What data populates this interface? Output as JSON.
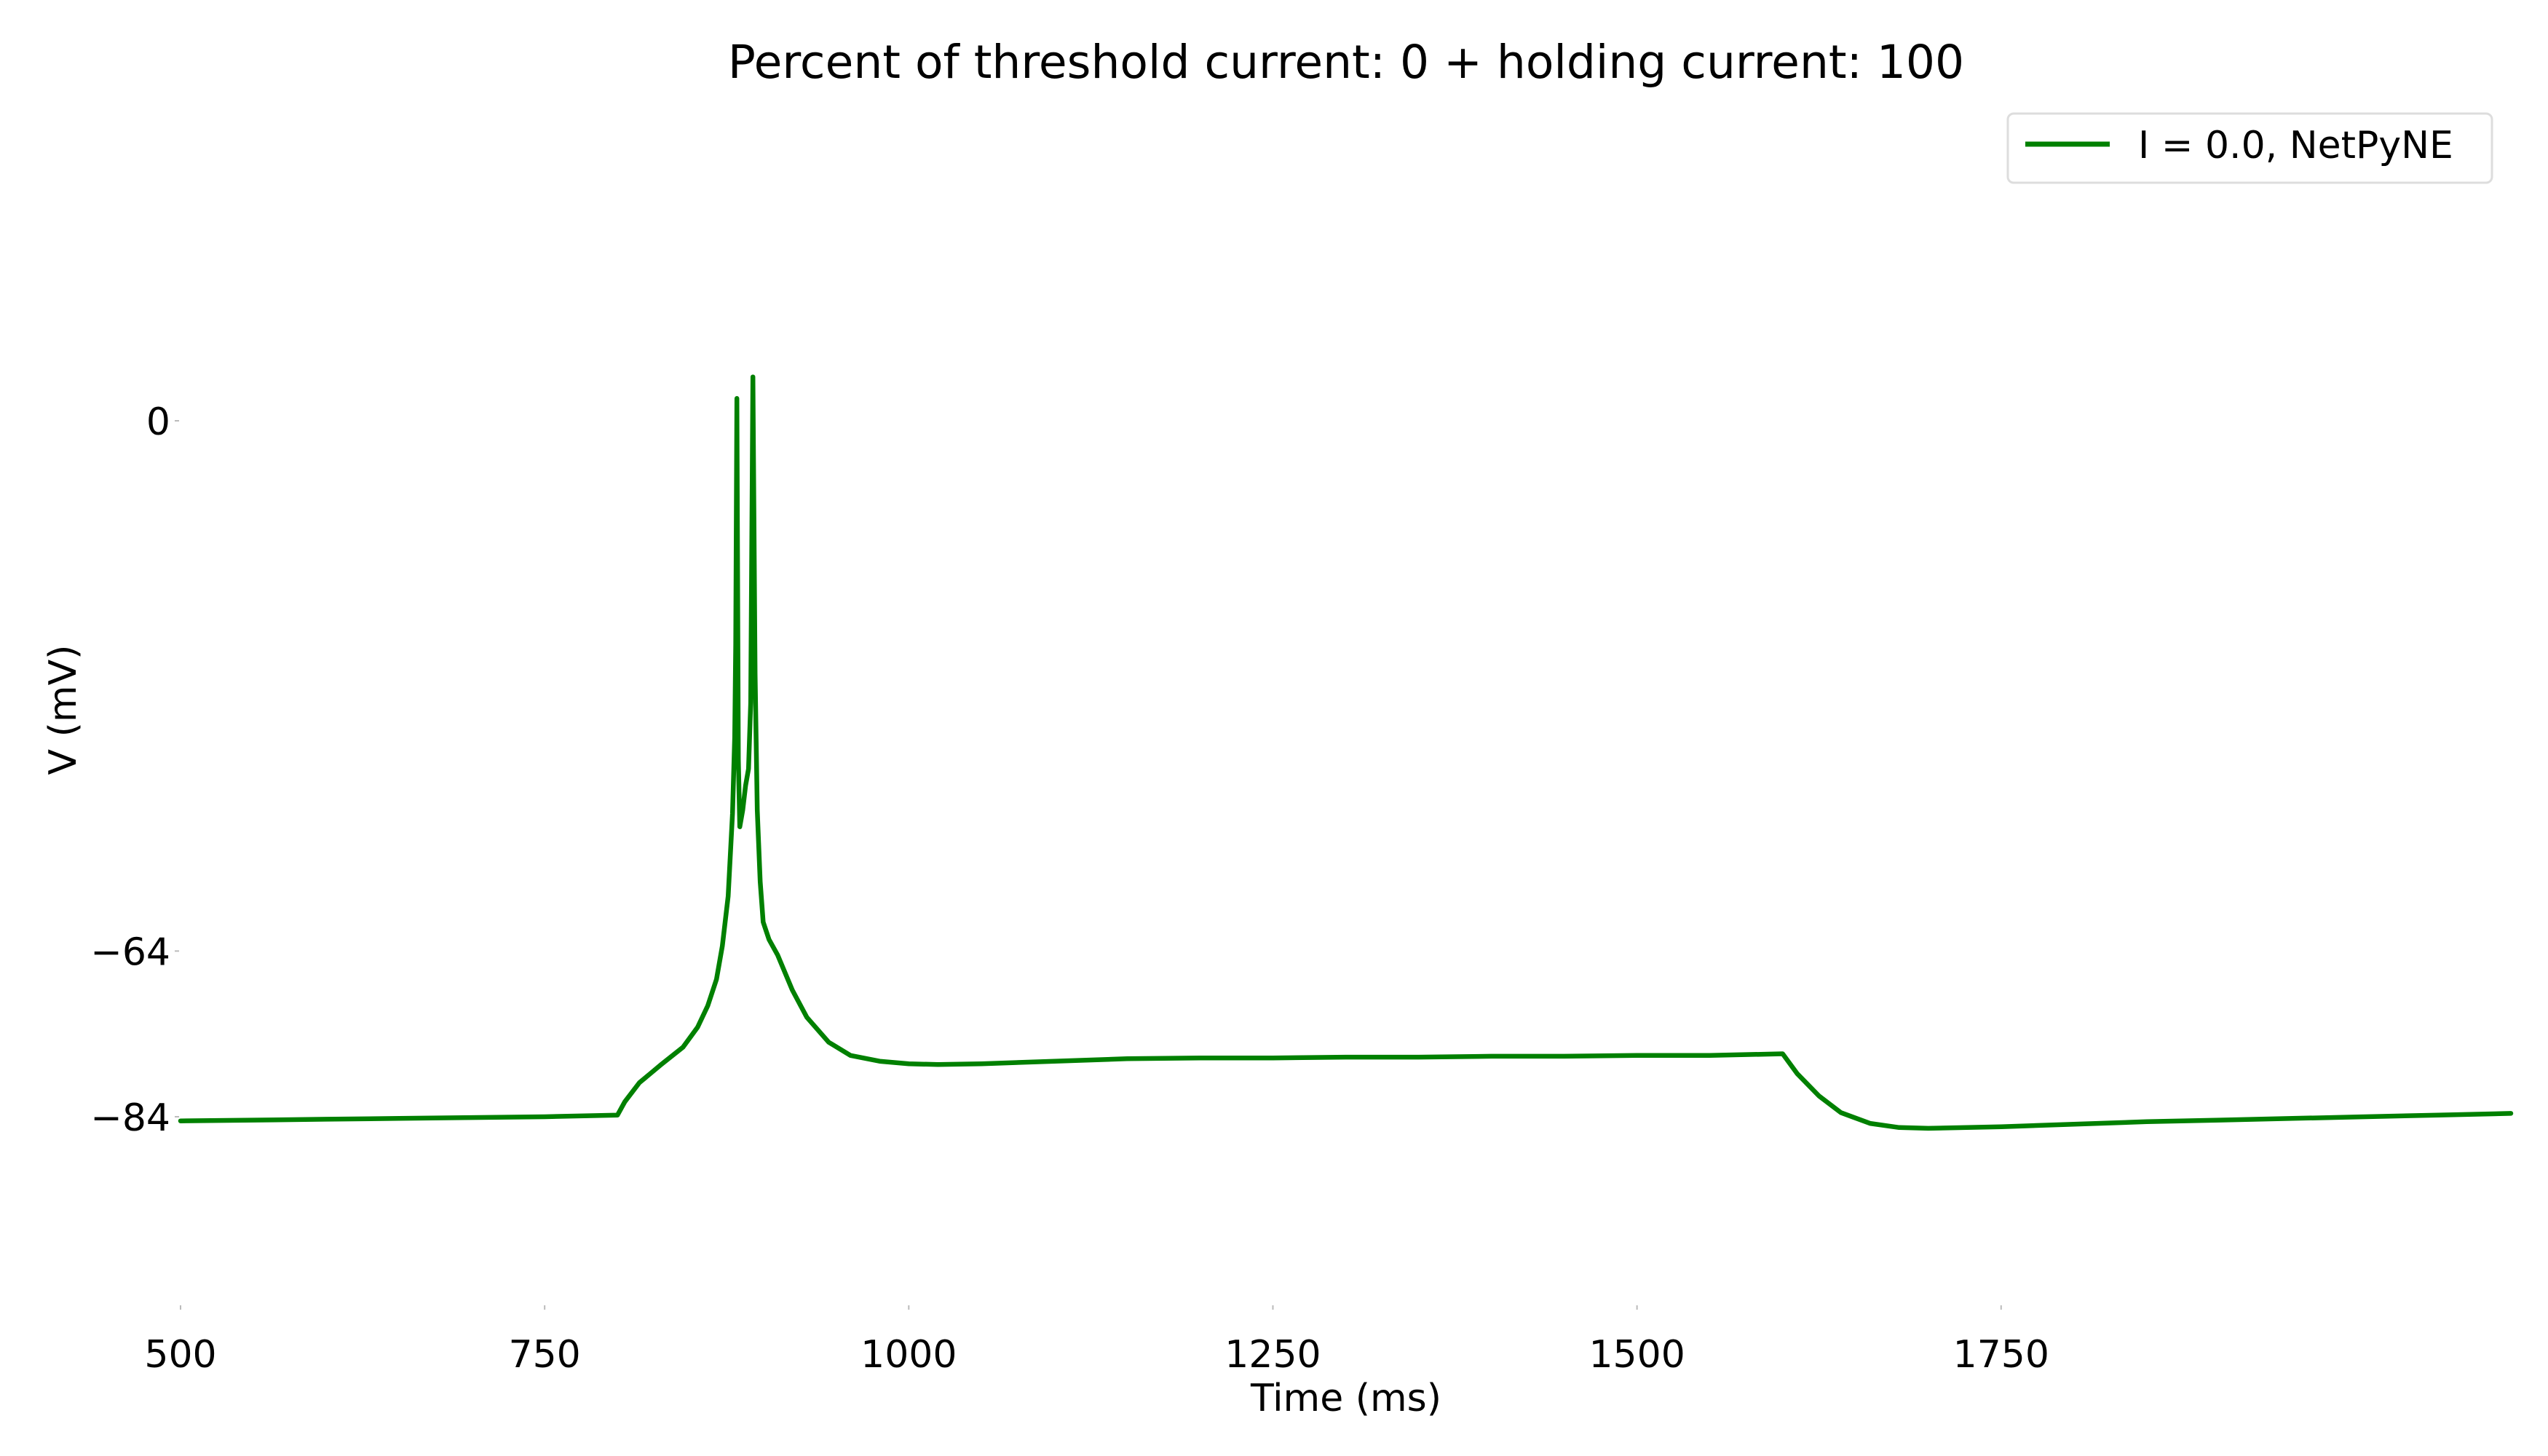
{
  "chart_data": {
    "type": "line",
    "title": "Percent of threshold current: 0 + holding current: 100",
    "xlabel": "Time (ms)",
    "ylabel": "V (mV)",
    "xlim": [
      500,
      2100
    ],
    "ylim": [
      -110,
      15
    ],
    "x_ticks": [
      500,
      750,
      1000,
      1250,
      1500,
      1750
    ],
    "x_tick_labels": [
      "500",
      "750",
      "1000",
      "1250",
      "1500",
      "1750"
    ],
    "y_ticks": [
      0,
      -64,
      -84
    ],
    "y_tick_labels": [
      "0",
      "−64",
      "−84"
    ],
    "grid": false,
    "legend_position": "top-right",
    "series": [
      {
        "name": "I = 0.0, NetPyNE",
        "color": "#008000",
        "points": [
          [
            500,
            -84.5
          ],
          [
            550,
            -84.4
          ],
          [
            600,
            -84.3
          ],
          [
            650,
            -84.2
          ],
          [
            700,
            -84.1
          ],
          [
            750,
            -84.0
          ],
          [
            800,
            -83.8
          ],
          [
            805,
            -82.2
          ],
          [
            815,
            -79.9
          ],
          [
            830,
            -77.7
          ],
          [
            845,
            -75.6
          ],
          [
            855,
            -73.2
          ],
          [
            862,
            -70.6
          ],
          [
            868,
            -67.4
          ],
          [
            872,
            -63.4
          ],
          [
            876,
            -57.4
          ],
          [
            879,
            -47.4
          ],
          [
            880.5,
            -38.2
          ],
          [
            881.2,
            -27.1
          ],
          [
            882,
            2.7
          ],
          [
            883,
            -40.9
          ],
          [
            884,
            -49.0
          ],
          [
            886,
            -47.0
          ],
          [
            888,
            -44.0
          ],
          [
            890,
            -42.0
          ],
          [
            891.5,
            -34.0
          ],
          [
            893,
            5.3
          ],
          [
            894.5,
            -30.5
          ],
          [
            896,
            -47.0
          ],
          [
            898,
            -55.6
          ],
          [
            900,
            -60.5
          ],
          [
            904,
            -62.6
          ],
          [
            910,
            -64.5
          ],
          [
            920,
            -68.7
          ],
          [
            930,
            -72.0
          ],
          [
            945,
            -75.0
          ],
          [
            960,
            -76.6
          ],
          [
            980,
            -77.3
          ],
          [
            1000,
            -77.6
          ],
          [
            1020,
            -77.7
          ],
          [
            1050,
            -77.6
          ],
          [
            1100,
            -77.3
          ],
          [
            1150,
            -77.0
          ],
          [
            1200,
            -76.9
          ],
          [
            1250,
            -76.9
          ],
          [
            1300,
            -76.8
          ],
          [
            1350,
            -76.8
          ],
          [
            1400,
            -76.7
          ],
          [
            1450,
            -76.7
          ],
          [
            1500,
            -76.6
          ],
          [
            1550,
            -76.6
          ],
          [
            1600,
            -76.4
          ],
          [
            1610,
            -78.8
          ],
          [
            1625,
            -81.5
          ],
          [
            1640,
            -83.5
          ],
          [
            1660,
            -84.8
          ],
          [
            1680,
            -85.3
          ],
          [
            1700,
            -85.4
          ],
          [
            1750,
            -85.2
          ],
          [
            1800,
            -84.9
          ],
          [
            1850,
            -84.6
          ],
          [
            1900,
            -84.4
          ],
          [
            1950,
            -84.2
          ],
          [
            2000,
            -84.0
          ],
          [
            2050,
            -83.8
          ],
          [
            2100,
            -83.6
          ]
        ]
      }
    ]
  }
}
